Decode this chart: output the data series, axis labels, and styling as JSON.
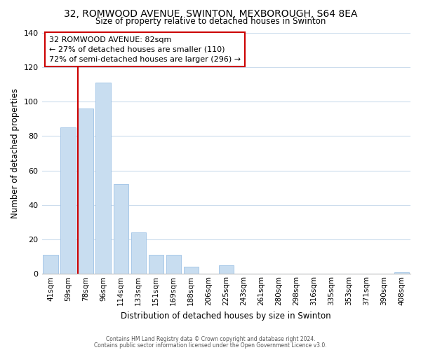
{
  "title": "32, ROMWOOD AVENUE, SWINTON, MEXBOROUGH, S64 8EA",
  "subtitle": "Size of property relative to detached houses in Swinton",
  "xlabel": "Distribution of detached houses by size in Swinton",
  "ylabel": "Number of detached properties",
  "bar_labels": [
    "41sqm",
    "59sqm",
    "78sqm",
    "96sqm",
    "114sqm",
    "133sqm",
    "151sqm",
    "169sqm",
    "188sqm",
    "206sqm",
    "225sqm",
    "243sqm",
    "261sqm",
    "280sqm",
    "298sqm",
    "316sqm",
    "335sqm",
    "353sqm",
    "371sqm",
    "390sqm",
    "408sqm"
  ],
  "bar_values": [
    11,
    85,
    96,
    111,
    52,
    24,
    11,
    11,
    4,
    0,
    5,
    0,
    0,
    0,
    0,
    0,
    0,
    0,
    0,
    0,
    1
  ],
  "bar_color": "#c8ddf0",
  "bar_edge_color": "#a8c8e8",
  "ylim": [
    0,
    140
  ],
  "yticks": [
    0,
    20,
    40,
    60,
    80,
    100,
    120,
    140
  ],
  "annotation_line1": "32 ROMWOOD AVENUE: 82sqm",
  "annotation_line2": "← 27% of detached houses are smaller (110)",
  "annotation_line3": "72% of semi-detached houses are larger (296) →",
  "footer_line1": "Contains HM Land Registry data © Crown copyright and database right 2024.",
  "footer_line2": "Contains public sector information licensed under the Open Government Licence v3.0.",
  "background_color": "#ffffff",
  "grid_color": "#ccdded",
  "annotation_box_color": "#ffffff",
  "annotation_box_edge": "#cc0000",
  "property_line_color": "#cc0000",
  "property_line_bar_index": 2.0
}
